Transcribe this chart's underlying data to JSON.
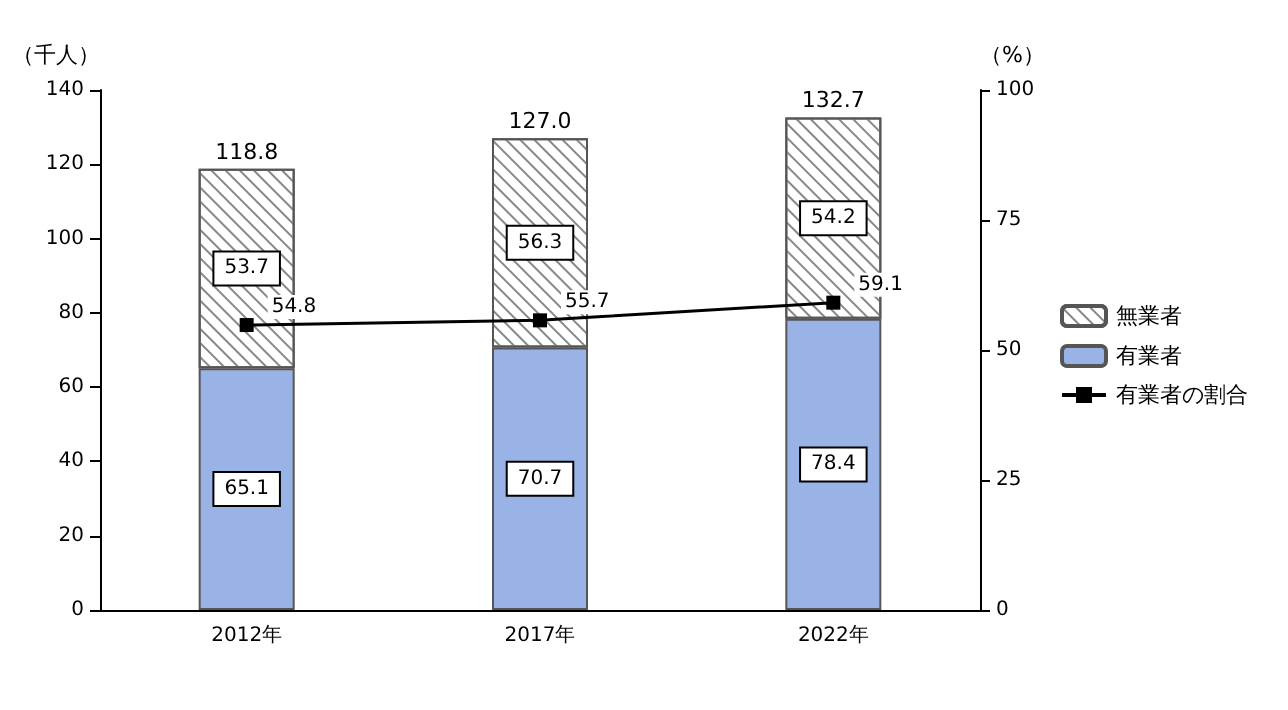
{
  "chart_data": {
    "type": "bar",
    "stacked": true,
    "ylabel": "（千人）",
    "y2label": "（%）",
    "categories": [
      "2012年",
      "2017年",
      "2022年"
    ],
    "series": [
      {
        "name": "有業者",
        "color": "#99b3e6",
        "values": [
          65.1,
          70.7,
          78.4
        ]
      },
      {
        "name": "無業者",
        "color": "#ffffff",
        "values": [
          53.7,
          56.3,
          54.2
        ]
      },
      {
        "name": "有業者の割合",
        "type": "line",
        "axis": "y2",
        "color": "#000000",
        "marker": "square",
        "line_style": "solid",
        "values": [
          54.8,
          55.7,
          59.1
        ]
      }
    ],
    "totals": [
      "118.8",
      "127.0",
      "132.7"
    ],
    "data_labels": true,
    "ylim": [
      0,
      140
    ],
    "yticks": [
      0,
      20,
      40,
      60,
      80,
      100,
      120,
      140
    ],
    "y2lim": [
      0,
      100
    ],
    "y2ticks": [
      0,
      25,
      50,
      75,
      100
    ],
    "grid": false,
    "legend": "right"
  }
}
